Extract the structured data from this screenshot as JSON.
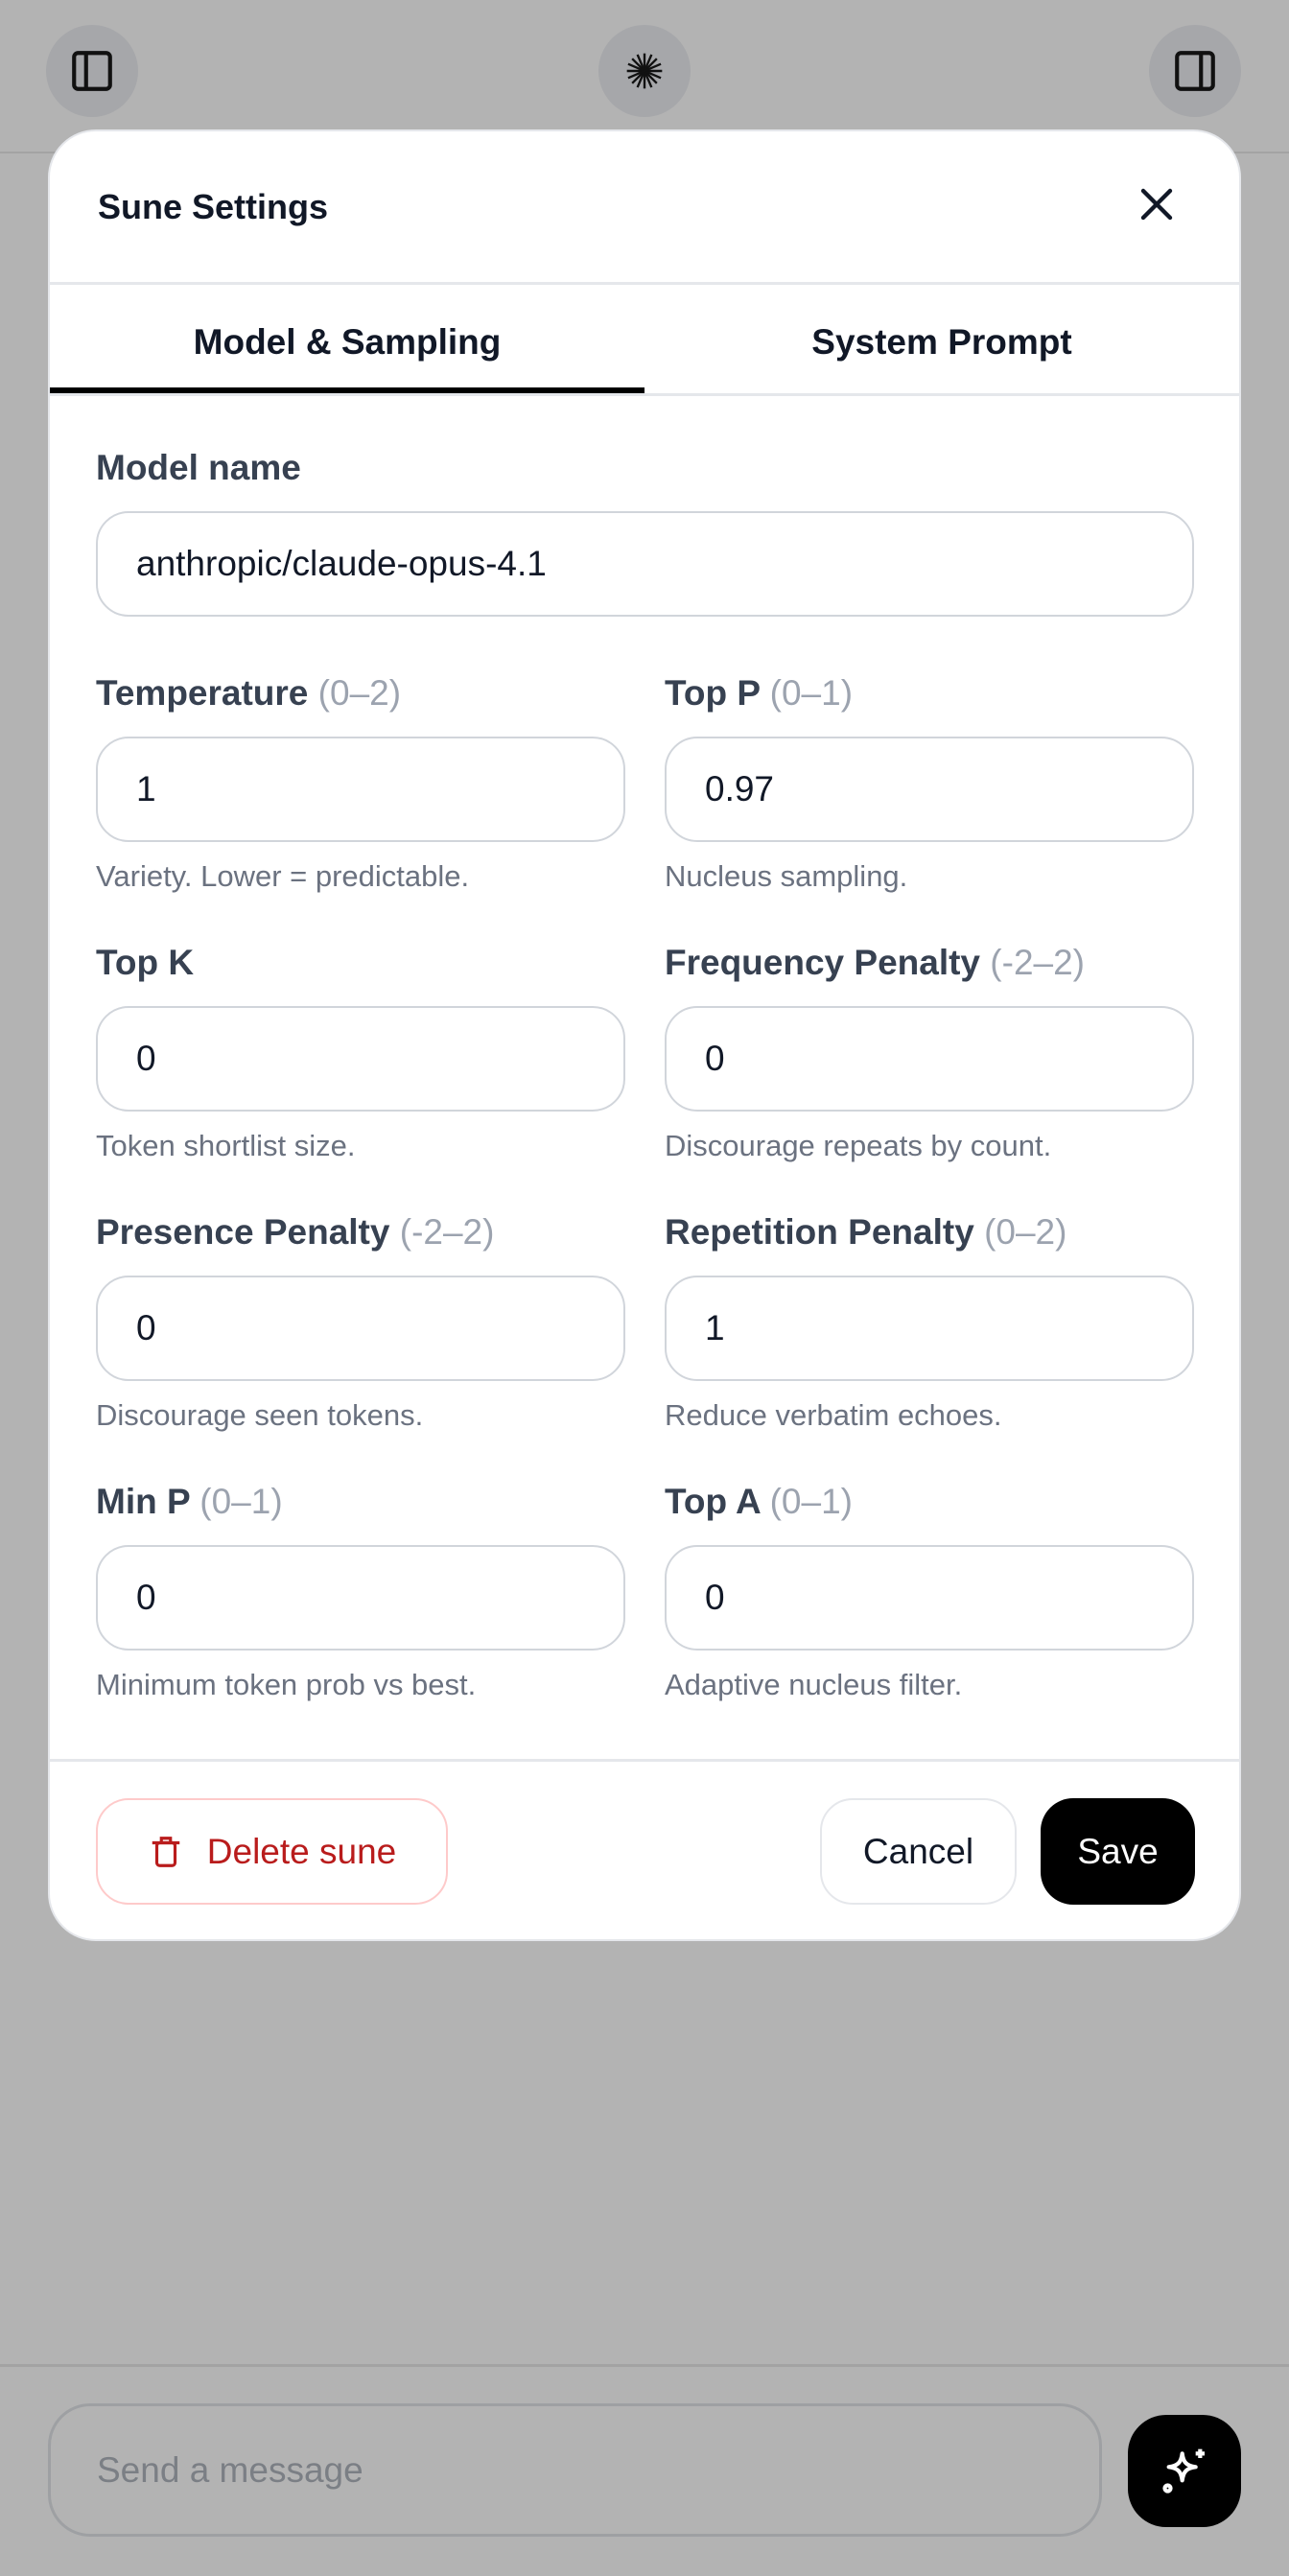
{
  "topbar": {
    "left_icon": "sidebar-left-icon",
    "center_icon": "starburst-logo-icon",
    "right_icon": "sidebar-right-icon"
  },
  "modal": {
    "title": "Sune Settings",
    "close_icon": "close-icon",
    "tabs": [
      {
        "label": "Model & Sampling",
        "active": true
      },
      {
        "label": "System Prompt",
        "active": false
      }
    ],
    "model": {
      "label": "Model name",
      "value": "anthropic/claude-opus-4.1"
    },
    "fields": [
      {
        "label": "Temperature",
        "range": "(0–2)",
        "value": "1",
        "help": "Variety. Lower = predictable."
      },
      {
        "label": "Top P",
        "range": "(0–1)",
        "value": "0.97",
        "help": "Nucleus sampling."
      },
      {
        "label": "Top K",
        "range": "",
        "value": "0",
        "help": "Token shortlist size."
      },
      {
        "label": "Frequency Penalty",
        "range": "(-2–2)",
        "value": "0",
        "help": "Discourage repeats by count."
      },
      {
        "label": "Presence Penalty",
        "range": "(-2–2)",
        "value": "0",
        "help": "Discourage seen tokens."
      },
      {
        "label": "Repetition Penalty",
        "range": "(0–2)",
        "value": "1",
        "help": "Reduce verbatim echoes."
      },
      {
        "label": "Min P",
        "range": "(0–1)",
        "value": "0",
        "help": "Minimum token prob vs best."
      },
      {
        "label": "Top A",
        "range": "(0–1)",
        "value": "0",
        "help": "Adaptive nucleus filter."
      }
    ],
    "footer": {
      "delete_label": "Delete sune",
      "cancel_label": "Cancel",
      "save_label": "Save"
    },
    "colors": {
      "danger": "#b91c1c",
      "primary": "#000000"
    }
  },
  "composer": {
    "placeholder": "Send a message",
    "send_icon": "sparkles-icon"
  }
}
